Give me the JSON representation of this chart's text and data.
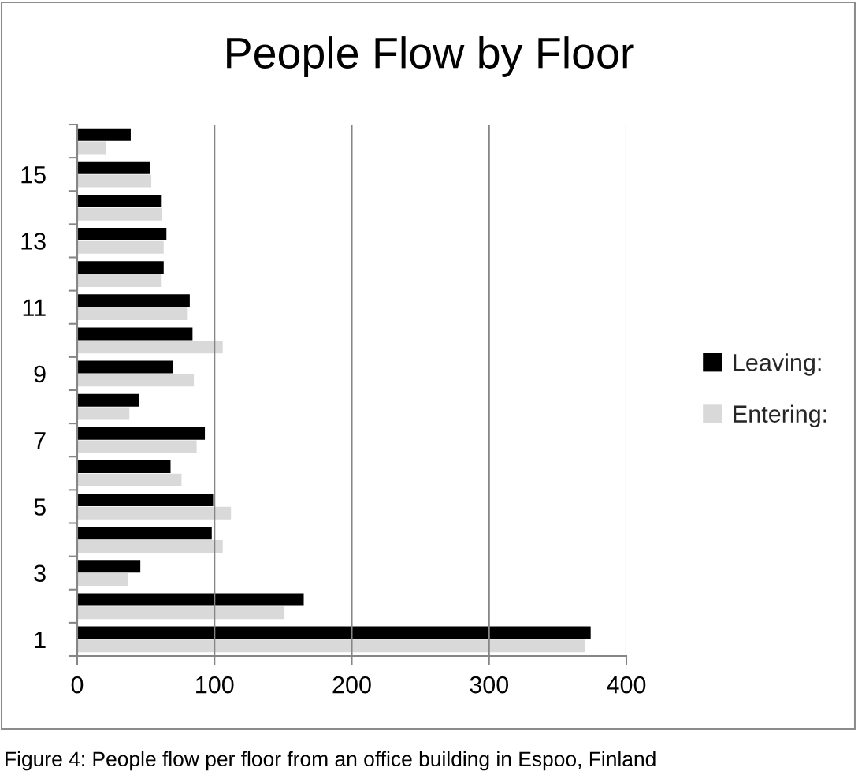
{
  "chart_data": {
    "type": "bar",
    "orientation": "horizontal",
    "title": "People Flow by Floor",
    "categories": [
      null,
      "15",
      null,
      "13",
      null,
      "11",
      null,
      "9",
      null,
      "7",
      null,
      "5",
      null,
      "3",
      null,
      "1"
    ],
    "series": [
      {
        "name": "Leaving:",
        "color": "#000000",
        "values": [
          39,
          53,
          61,
          65,
          63,
          82,
          84,
          70,
          45,
          93,
          68,
          99,
          98,
          46,
          165,
          374
        ]
      },
      {
        "name": "Entering:",
        "color": "#d9d9d9",
        "values": [
          21,
          54,
          62,
          63,
          61,
          80,
          106,
          85,
          38,
          87,
          76,
          112,
          106,
          37,
          151,
          370
        ]
      }
    ],
    "xlim": [
      0,
      400
    ],
    "xticks": [
      0,
      100,
      200,
      300,
      400
    ],
    "grid": "x",
    "legend": "right",
    "annotations": [
      "Figure 4: People flow per floor from an office building in Espoo, Finland"
    ]
  }
}
